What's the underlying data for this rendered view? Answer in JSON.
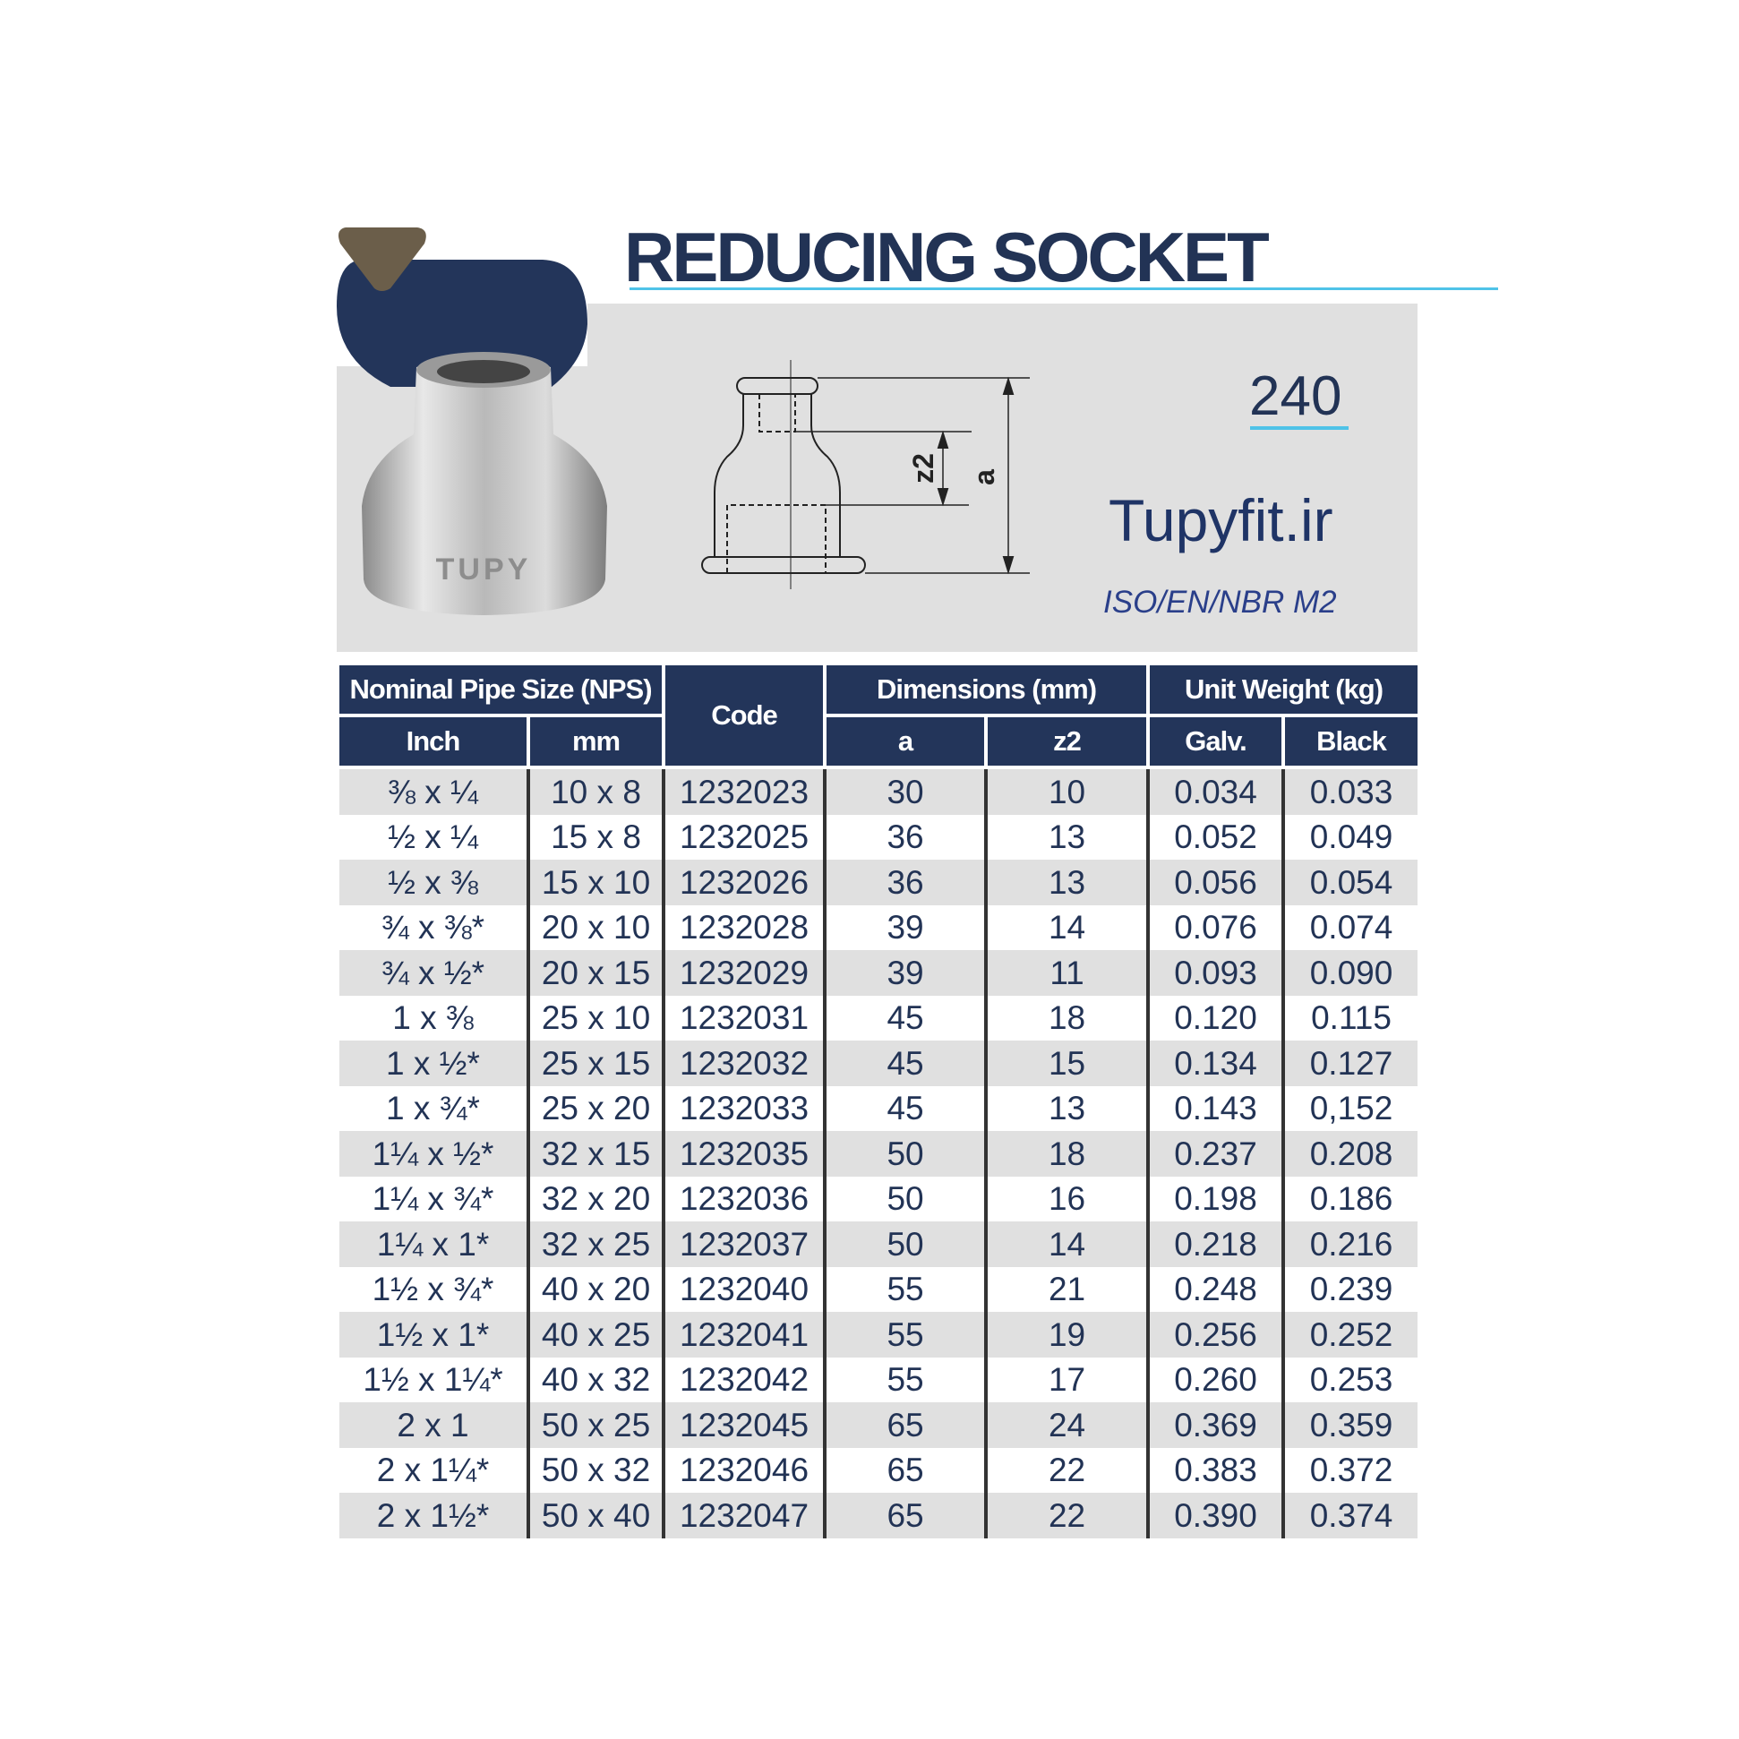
{
  "title": "REDUCING SOCKET",
  "model": "240",
  "website": "Tupyfit.ir",
  "standard": "ISO/EN/NBR M2",
  "product_marking": "TUPY",
  "drawing_labels": {
    "z2": "z2",
    "a": "a"
  },
  "colors": {
    "navy": "#23355a",
    "accent": "#4fc3e8",
    "brown": "#6b5e4a",
    "row_gray": "#e0e0e0"
  },
  "table": {
    "group_headers": {
      "nps": "Nominal Pipe Size (NPS)",
      "code": "Code",
      "dimensions": "Dimensions (mm)",
      "weight": "Unit Weight (kg)"
    },
    "sub_headers": [
      "Inch",
      "mm",
      "a",
      "z2",
      "Galv.",
      "Black"
    ],
    "rows": [
      [
        "⅜ x ¼",
        "10 x 8",
        "1232023",
        "30",
        "10",
        "0.034",
        "0.033"
      ],
      [
        "½ x ¼",
        "15 x 8",
        "1232025",
        "36",
        "13",
        "0.052",
        "0.049"
      ],
      [
        "½ x ⅜",
        "15 x 10",
        "1232026",
        "36",
        "13",
        "0.056",
        "0.054"
      ],
      [
        "¾ x ⅜*",
        "20 x 10",
        "1232028",
        "39",
        "14",
        "0.076",
        "0.074"
      ],
      [
        "¾ x ½*",
        "20 x 15",
        "1232029",
        "39",
        "11",
        "0.093",
        "0.090"
      ],
      [
        "1 x ⅜",
        "25 x 10",
        "1232031",
        "45",
        "18",
        "0.120",
        "0.115"
      ],
      [
        "1 x ½*",
        "25 x 15",
        "1232032",
        "45",
        "15",
        "0.134",
        "0.127"
      ],
      [
        "1 x ¾*",
        "25 x 20",
        "1232033",
        "45",
        "13",
        "0.143",
        "0,152"
      ],
      [
        "1¼ x ½*",
        "32 x 15",
        "1232035",
        "50",
        "18",
        "0.237",
        "0.208"
      ],
      [
        "1¼ x ¾*",
        "32 x 20",
        "1232036",
        "50",
        "16",
        "0.198",
        "0.186"
      ],
      [
        "1¼ x 1*",
        "32 x 25",
        "1232037",
        "50",
        "14",
        "0.218",
        "0.216"
      ],
      [
        "1½ x ¾*",
        "40 x 20",
        "1232040",
        "55",
        "21",
        "0.248",
        "0.239"
      ],
      [
        "1½ x 1*",
        "40 x 25",
        "1232041",
        "55",
        "19",
        "0.256",
        "0.252"
      ],
      [
        "1½ x 1¼*",
        "40 x 32",
        "1232042",
        "55",
        "17",
        "0.260",
        "0.253"
      ],
      [
        "2 x 1",
        "50 x 25",
        "1232045",
        "65",
        "24",
        "0.369",
        "0.359"
      ],
      [
        "2 x 1¼*",
        "50 x 32",
        "1232046",
        "65",
        "22",
        "0.383",
        "0.372"
      ],
      [
        "2 x 1½*",
        "50 x 40",
        "1232047",
        "65",
        "22",
        "0.390",
        "0.374"
      ]
    ]
  }
}
